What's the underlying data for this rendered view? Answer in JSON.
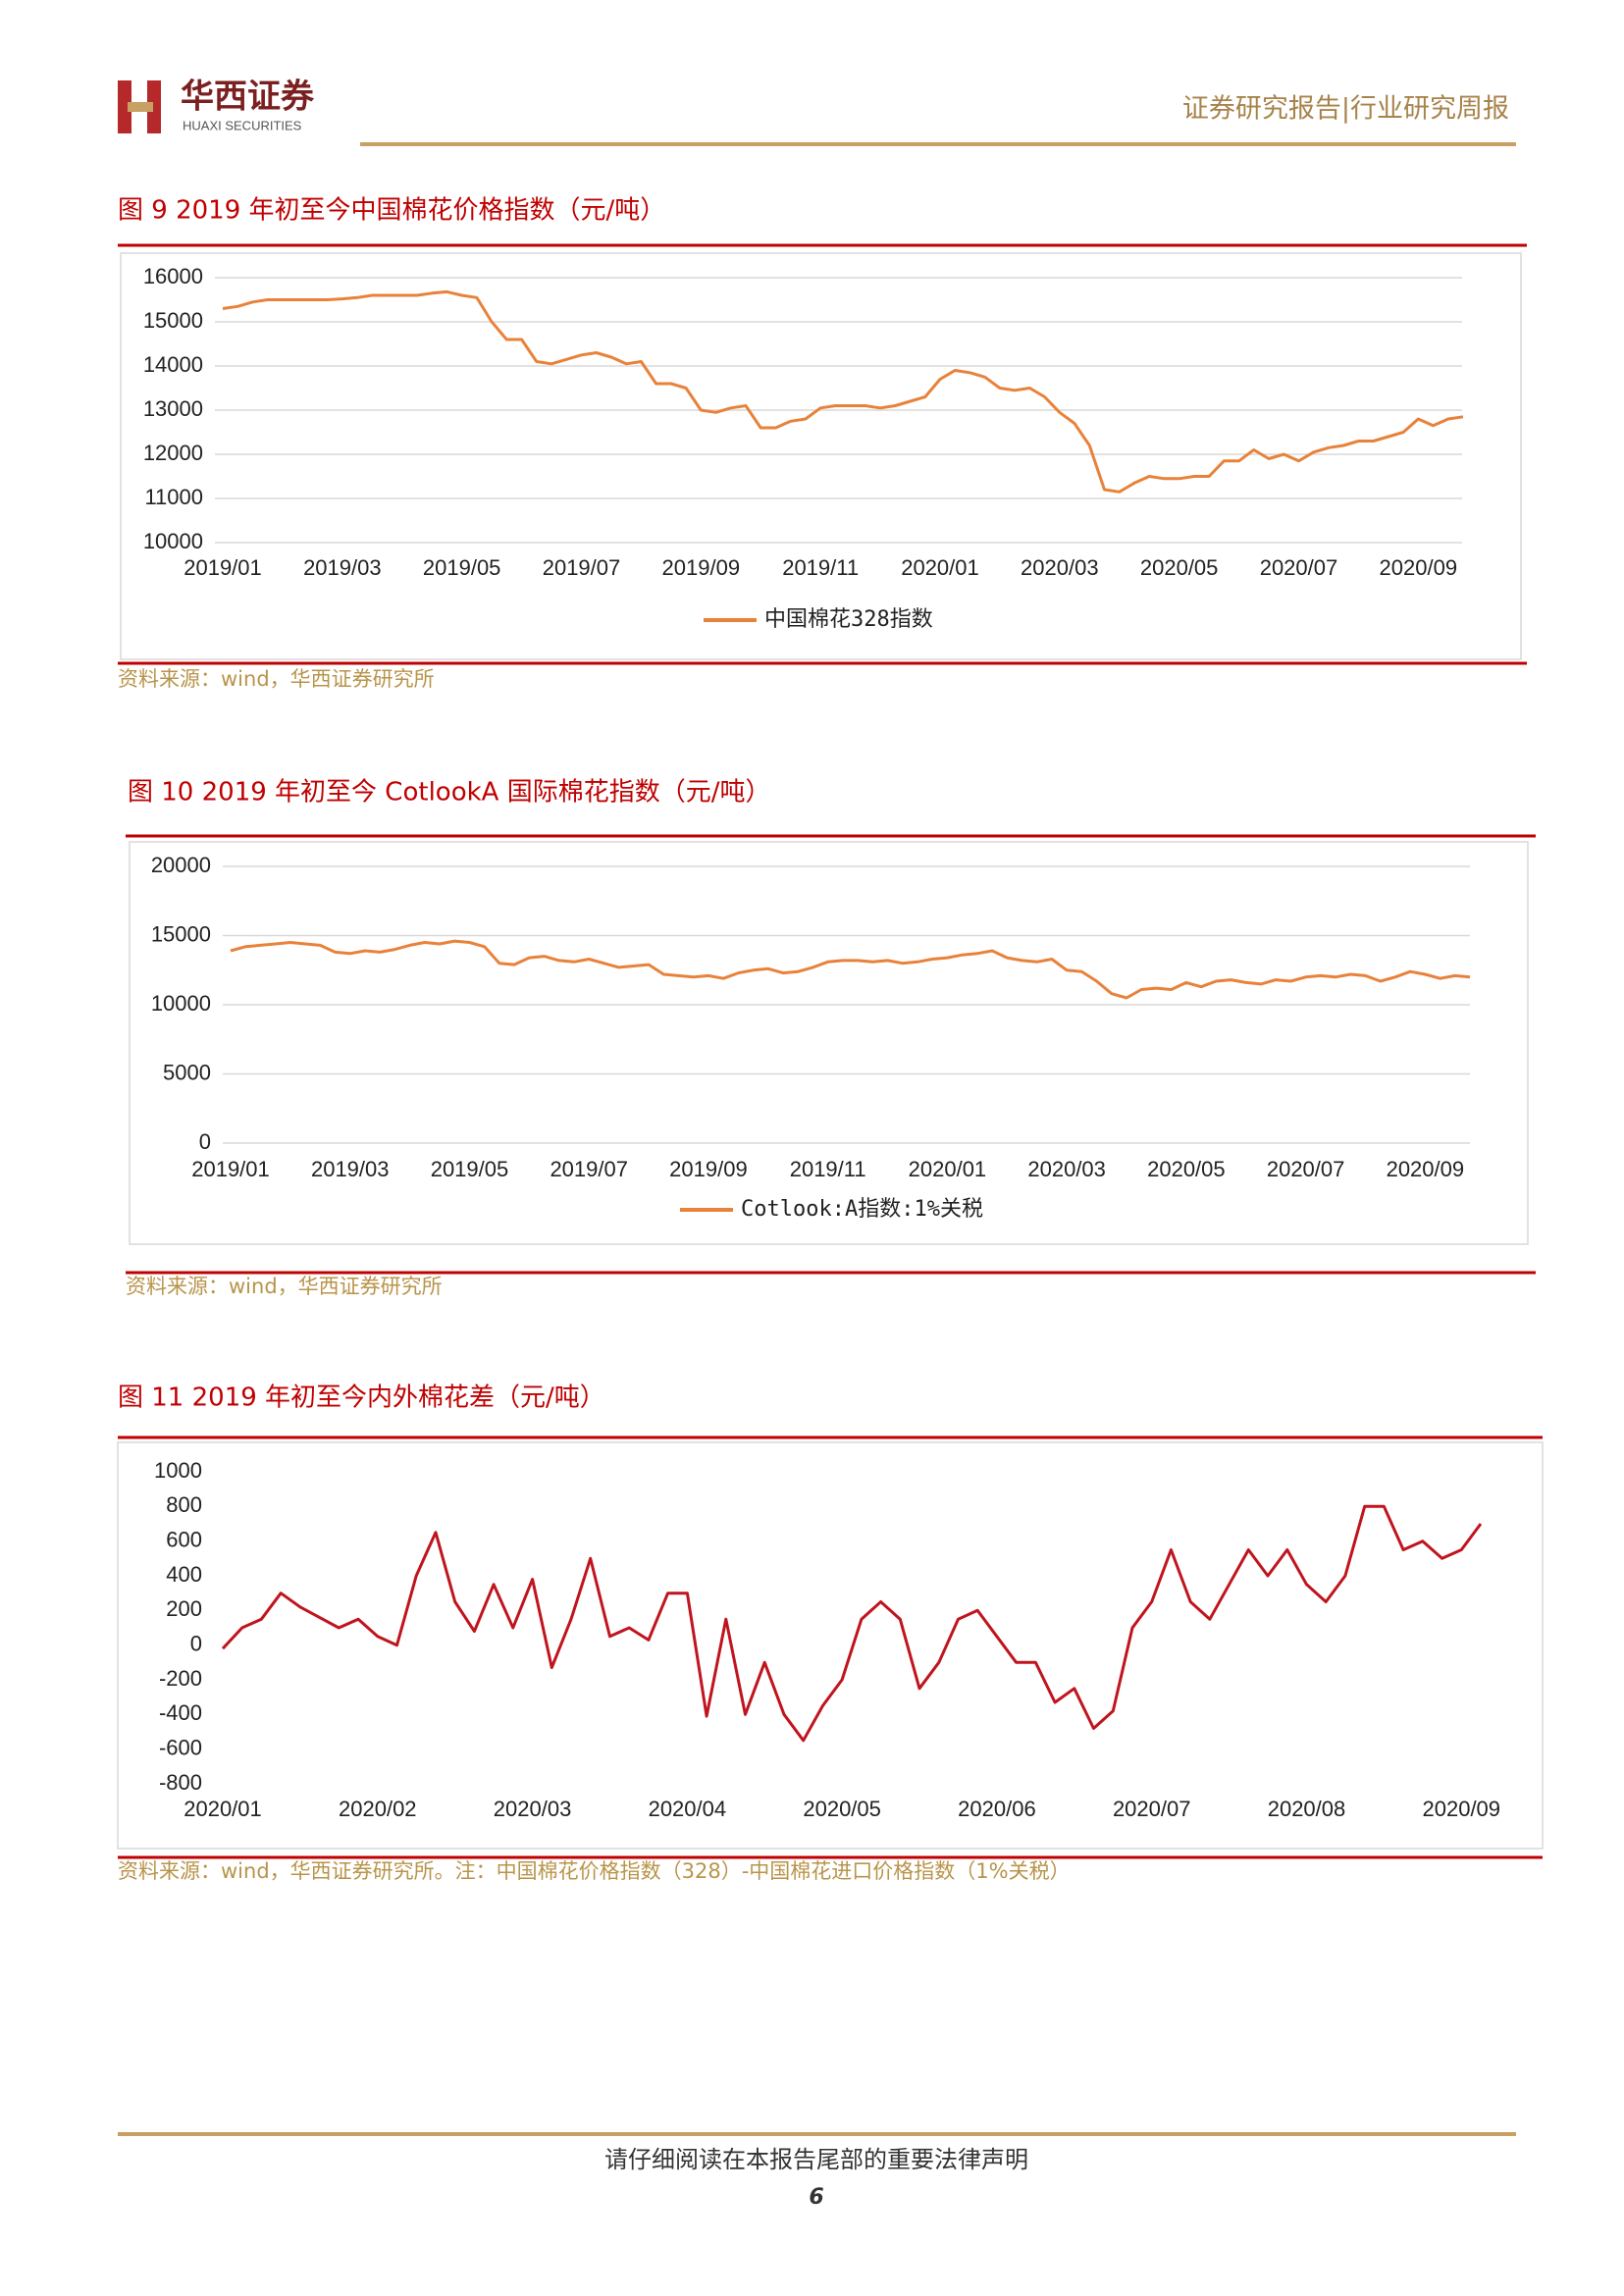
{
  "header": {
    "brand_cn": "华西证券",
    "brand_en": "HUAXI SECURITIES",
    "report_type": "证券研究报告|行业研究周报"
  },
  "chart_data": [
    {
      "type": "line",
      "title": "图 9 2019 年初至今中国棉花价格指数（元/吨）",
      "source": "资料来源：wind，华西证券研究所",
      "categories": [
        "2019/01",
        null,
        null,
        null,
        null,
        null,
        null,
        null,
        "2019/03",
        null,
        null,
        null,
        null,
        null,
        null,
        null,
        "2019/05",
        null,
        null,
        null,
        null,
        null,
        null,
        null,
        "2019/07",
        null,
        null,
        null,
        null,
        null,
        null,
        null,
        "2019/09",
        null,
        null,
        null,
        null,
        null,
        null,
        null,
        "2019/11",
        null,
        null,
        null,
        null,
        null,
        null,
        null,
        "2020/01",
        null,
        null,
        null,
        null,
        null,
        null,
        null,
        "2020/03",
        null,
        null,
        null,
        null,
        null,
        null,
        null,
        "2020/05",
        null,
        null,
        null,
        null,
        null,
        null,
        null,
        "2020/07",
        null,
        null,
        null,
        null,
        null,
        null,
        null,
        "2020/09",
        null,
        null,
        null
      ],
      "series": [
        {
          "name": "中国棉花328指数",
          "color": "#E8823A",
          "values": [
            15300,
            15350,
            15450,
            15500,
            15500,
            15500,
            15500,
            15500,
            15520,
            15550,
            15600,
            15600,
            15600,
            15600,
            15650,
            15680,
            15600,
            15550,
            15000,
            14600,
            14600,
            14100,
            14050,
            14150,
            14250,
            14300,
            14200,
            14050,
            14100,
            13600,
            13600,
            13500,
            13000,
            12950,
            13050,
            13100,
            12600,
            12600,
            12750,
            12800,
            13050,
            13100,
            13100,
            13100,
            13050,
            13100,
            13200,
            13300,
            13700,
            13900,
            13850,
            13750,
            13500,
            13450,
            13500,
            13300,
            12950,
            12700,
            12200,
            11200,
            11150,
            11350,
            11500,
            11450,
            11450,
            11500,
            11500,
            11850,
            11850,
            12100,
            11900,
            12000,
            11850,
            12050,
            12150,
            12200,
            12300,
            12300,
            12400,
            12500,
            12800,
            12650,
            12800,
            12850
          ]
        }
      ],
      "ylim": [
        10000,
        16000
      ],
      "yticks": [
        10000,
        11000,
        12000,
        13000,
        14000,
        15000,
        16000
      ],
      "grid": true,
      "legend": "bottom"
    },
    {
      "type": "line",
      "title": "图 10 2019 年初至今 CotlookA 国际棉花指数（元/吨）",
      "source": "资料来源：wind，华西证券研究所",
      "categories": [
        "2019/01",
        null,
        null,
        null,
        null,
        null,
        null,
        null,
        "2019/03",
        null,
        null,
        null,
        null,
        null,
        null,
        null,
        "2019/05",
        null,
        null,
        null,
        null,
        null,
        null,
        null,
        "2019/07",
        null,
        null,
        null,
        null,
        null,
        null,
        null,
        "2019/09",
        null,
        null,
        null,
        null,
        null,
        null,
        null,
        "2019/11",
        null,
        null,
        null,
        null,
        null,
        null,
        null,
        "2020/01",
        null,
        null,
        null,
        null,
        null,
        null,
        null,
        "2020/03",
        null,
        null,
        null,
        null,
        null,
        null,
        null,
        "2020/05",
        null,
        null,
        null,
        null,
        null,
        null,
        null,
        "2020/07",
        null,
        null,
        null,
        null,
        null,
        null,
        null,
        "2020/09",
        null,
        null,
        null
      ],
      "series": [
        {
          "name": "Cotlook:A指数:1%关税",
          "color": "#E8823A",
          "values": [
            13900,
            14200,
            14300,
            14400,
            14500,
            14400,
            14300,
            13800,
            13700,
            13900,
            13800,
            14000,
            14300,
            14500,
            14400,
            14600,
            14500,
            14200,
            13000,
            12900,
            13400,
            13500,
            13200,
            13100,
            13300,
            13000,
            12700,
            12800,
            12900,
            12200,
            12100,
            12000,
            12100,
            11900,
            12300,
            12500,
            12600,
            12300,
            12400,
            12700,
            13100,
            13200,
            13200,
            13100,
            13200,
            13000,
            13100,
            13300,
            13400,
            13600,
            13700,
            13900,
            13400,
            13200,
            13100,
            13300,
            12500,
            12400,
            11700,
            10800,
            10500,
            11100,
            11200,
            11100,
            11600,
            11300,
            11700,
            11800,
            11600,
            11500,
            11800,
            11700,
            12000,
            12100,
            12000,
            12200,
            12100,
            11700,
            12000,
            12400,
            12200,
            11900,
            12100,
            12000
          ]
        }
      ],
      "ylim": [
        0,
        20000
      ],
      "yticks": [
        0,
        5000,
        10000,
        15000,
        20000
      ],
      "grid": true,
      "legend": "bottom"
    },
    {
      "type": "line",
      "title": "图 11 2019 年初至今内外棉花差（元/吨）",
      "source": "资料来源：wind，华西证券研究所。注：中国棉花价格指数（328）-中国棉花进口价格指数（1%关税）",
      "categories": [
        "2020/01",
        null,
        null,
        null,
        null,
        null,
        null,
        null,
        "2020/02",
        null,
        null,
        null,
        null,
        null,
        null,
        null,
        "2020/03",
        null,
        null,
        null,
        null,
        null,
        null,
        null,
        "2020/04",
        null,
        null,
        null,
        null,
        null,
        null,
        null,
        "2020/05",
        null,
        null,
        null,
        null,
        null,
        null,
        null,
        "2020/06",
        null,
        null,
        null,
        null,
        null,
        null,
        null,
        "2020/07",
        null,
        null,
        null,
        null,
        null,
        null,
        null,
        "2020/08",
        null,
        null,
        null,
        null,
        null,
        null,
        null,
        "2020/09",
        null
      ],
      "color": "#C0141E",
      "values": [
        -20,
        100,
        150,
        300,
        220,
        160,
        100,
        150,
        50,
        0,
        400,
        650,
        250,
        80,
        350,
        100,
        380,
        -130,
        150,
        500,
        50,
        100,
        30,
        300,
        300,
        -410,
        150,
        -400,
        -100,
        -400,
        -550,
        -350,
        -200,
        150,
        250,
        150,
        -250,
        -100,
        150,
        200,
        50,
        -100,
        -100,
        -330,
        -250,
        -480,
        -380,
        100,
        250,
        550,
        250,
        150,
        350,
        550,
        400,
        550,
        350,
        250,
        400,
        800,
        800,
        550,
        600,
        500,
        550,
        700
      ],
      "ylim": [
        -800,
        1000
      ],
      "yticks": [
        -800,
        -600,
        -400,
        -200,
        0,
        200,
        400,
        600,
        800,
        1000
      ],
      "grid": false
    }
  ],
  "footer": {
    "disclaimer": "请仔细阅读在本报告尾部的重要法律声明",
    "page": "6"
  }
}
